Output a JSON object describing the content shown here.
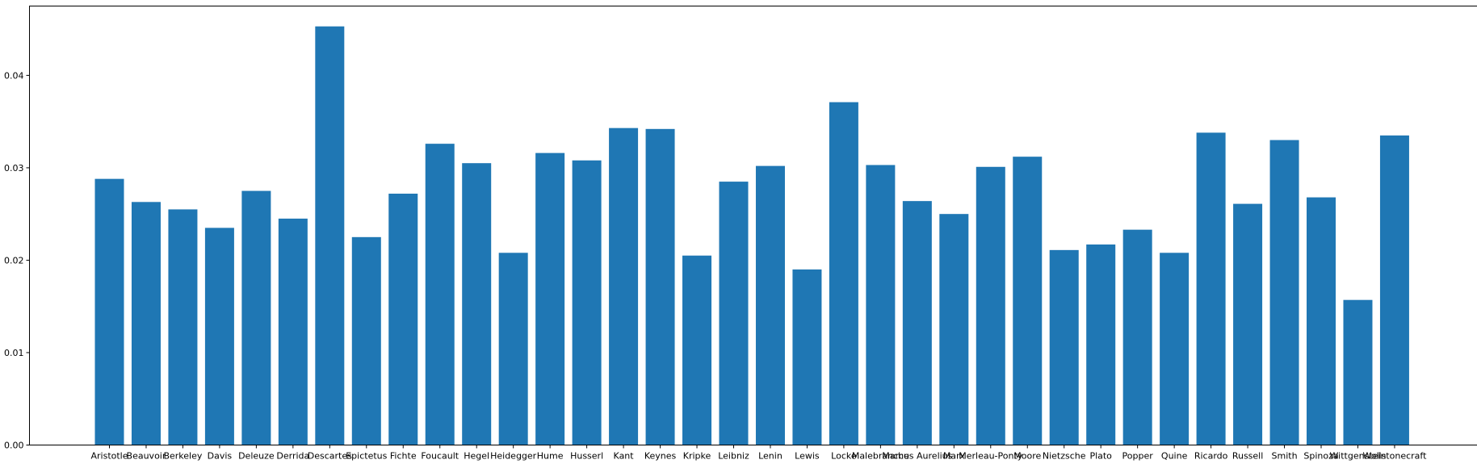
{
  "chart_data": {
    "type": "bar",
    "title": "",
    "xlabel": "",
    "ylabel": "",
    "ylim": [
      0,
      0.0475
    ],
    "grid": false,
    "legend": "none",
    "bar_color": "#1f77b4",
    "yticks": [
      0.0,
      0.01,
      0.02,
      0.03,
      0.04
    ],
    "ytick_labels": [
      "0.00",
      "0.01",
      "0.02",
      "0.03",
      "0.04"
    ],
    "categories": [
      "Aristotle",
      "Beauvoir",
      "Berkeley",
      "Davis",
      "Deleuze",
      "Derrida",
      "Descartes",
      "Epictetus",
      "Fichte",
      "Foucault",
      "Hegel",
      "Heidegger",
      "Hume",
      "Husserl",
      "Kant",
      "Keynes",
      "Kripke",
      "Leibniz",
      "Lenin",
      "Lewis",
      "Locke",
      "Malebranche",
      "Marcus Aurelius",
      "Marx",
      "Merleau-Ponty",
      "Moore",
      "Nietzsche",
      "Plato",
      "Popper",
      "Quine",
      "Ricardo",
      "Russell",
      "Smith",
      "Spinoza",
      "Wittgenstein",
      "Wollstonecraft"
    ],
    "values": [
      0.0288,
      0.0263,
      0.0255,
      0.0235,
      0.0275,
      0.0245,
      0.0453,
      0.0225,
      0.0272,
      0.0326,
      0.0305,
      0.0208,
      0.0316,
      0.0308,
      0.0343,
      0.0342,
      0.0205,
      0.0285,
      0.0302,
      0.019,
      0.0371,
      0.0303,
      0.0264,
      0.025,
      0.0301,
      0.0312,
      0.0211,
      0.0217,
      0.0233,
      0.0208,
      0.0338,
      0.0261,
      0.033,
      0.0268,
      0.0157,
      0.0335
    ]
  }
}
